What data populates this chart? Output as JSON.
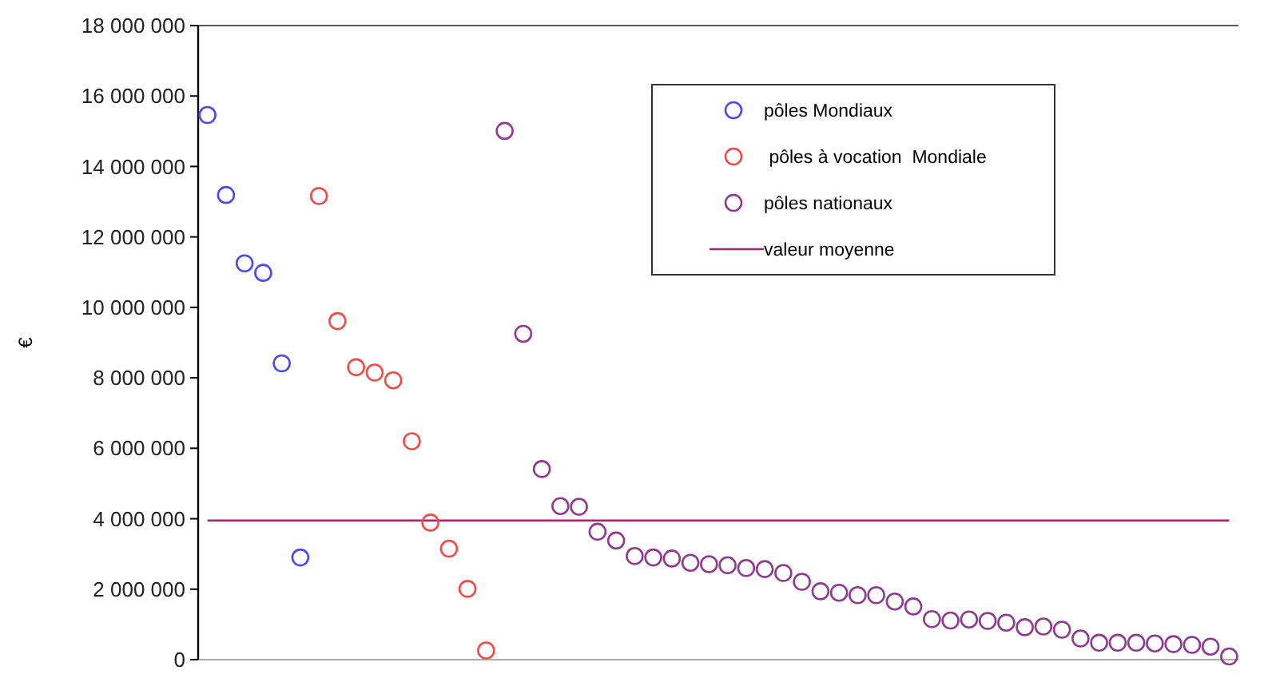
{
  "chart_data": {
    "type": "scatter",
    "ylabel": "€",
    "categories": [
      null,
      null,
      null,
      null,
      null,
      null,
      null,
      null,
      null,
      null,
      null,
      null,
      null,
      null,
      null,
      null,
      null,
      null,
      null,
      null,
      null,
      null,
      null,
      null,
      null,
      null,
      null,
      null,
      null,
      null,
      null,
      null,
      null,
      null,
      null,
      null,
      null,
      null,
      null,
      null,
      null,
      null,
      null,
      null,
      null,
      null,
      null,
      null,
      null,
      null,
      null,
      null,
      null,
      null,
      null,
      null
    ],
    "series": [
      {
        "name": "pôles Mondiaux",
        "color": "#4a4af5",
        "values": [
          15460000,
          13190000,
          11250000,
          10980000,
          8410000,
          2900000,
          null,
          null,
          null,
          null,
          null,
          null,
          null,
          null,
          null,
          null,
          null,
          null,
          null,
          null,
          null,
          null,
          null,
          null,
          null,
          null,
          null,
          null,
          null,
          null,
          null,
          null,
          null,
          null,
          null,
          null,
          null,
          null,
          null,
          null,
          null,
          null,
          null,
          null,
          null,
          null,
          null,
          null,
          null,
          null,
          null,
          null,
          null,
          null,
          null,
          null
        ]
      },
      {
        "name": " pôles à vocation  Mondiale",
        "color": "#f54a4a",
        "values": [
          null,
          null,
          null,
          null,
          null,
          null,
          13160000,
          9610000,
          8300000,
          8150000,
          7930000,
          6200000,
          3890000,
          3150000,
          2010000,
          260000,
          null,
          null,
          null,
          null,
          null,
          null,
          null,
          null,
          null,
          null,
          null,
          null,
          null,
          null,
          null,
          null,
          null,
          null,
          null,
          null,
          null,
          null,
          null,
          null,
          null,
          null,
          null,
          null,
          null,
          null,
          null,
          null,
          null,
          null,
          null,
          null,
          null,
          null,
          null,
          null
        ]
      },
      {
        "name": "pôles nationaux",
        "color": "#8e3a8e",
        "values": [
          null,
          null,
          null,
          null,
          null,
          null,
          null,
          null,
          null,
          null,
          null,
          null,
          null,
          null,
          null,
          null,
          15010000,
          9250000,
          5410000,
          4360000,
          4340000,
          3630000,
          3380000,
          2940000,
          2900000,
          2870000,
          2750000,
          2710000,
          2680000,
          2600000,
          2570000,
          2460000,
          2210000,
          1940000,
          1900000,
          1830000,
          1830000,
          1650000,
          1510000,
          1150000,
          1110000,
          1140000,
          1100000,
          1050000,
          920000,
          940000,
          850000,
          600000,
          480000,
          480000,
          480000,
          460000,
          440000,
          420000,
          370000,
          90000
        ]
      }
    ],
    "ref_lines": [
      {
        "axis": "y",
        "value": 3950000,
        "label": "valeur moyenne",
        "color": "#9b2a6a"
      }
    ],
    "ylim": [
      0,
      18000000
    ],
    "yticks": [
      {
        "value": 0,
        "label": "0"
      },
      {
        "value": 2000000,
        "label": "2 000 000"
      },
      {
        "value": 4000000,
        "label": "4 000 000"
      },
      {
        "value": 6000000,
        "label": "6 000 000"
      },
      {
        "value": 8000000,
        "label": "8 000 000"
      },
      {
        "value": 10000000,
        "label": "10 000 000"
      },
      {
        "value": 12000000,
        "label": "12 000 000"
      },
      {
        "value": 14000000,
        "label": "14 000 000"
      },
      {
        "value": 16000000,
        "label": "16 000 000"
      },
      {
        "value": 18000000,
        "label": "18 000 000"
      }
    ],
    "marker": "circle",
    "legend": "top right",
    "grid": false
  }
}
